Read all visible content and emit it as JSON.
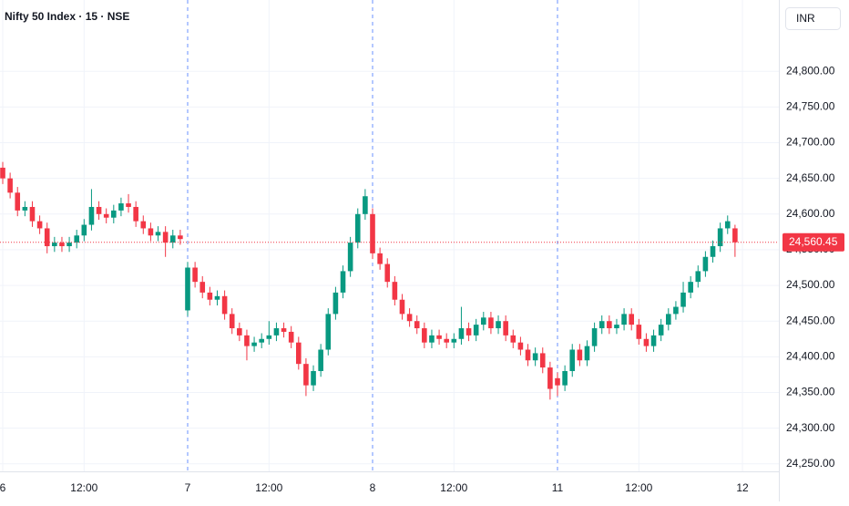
{
  "chart_data": {
    "type": "candlestick",
    "title": "Nifty 50 Index · 15 · NSE",
    "currency": "INR",
    "up_color": "#089981",
    "down_color": "#f23645",
    "ylim": [
      24242,
      24900
    ],
    "yticks": [
      {
        "value": 24250,
        "label": "24,250.00"
      },
      {
        "value": 24300,
        "label": "24,300.00"
      },
      {
        "value": 24350,
        "label": "24,350.00"
      },
      {
        "value": 24400,
        "label": "24,400.00"
      },
      {
        "value": 24450,
        "label": "24,450.00"
      },
      {
        "value": 24500,
        "label": "24,500.00"
      },
      {
        "value": 24550,
        "label": "24,550.00"
      },
      {
        "value": 24600,
        "label": "24,600.00"
      },
      {
        "value": 24650,
        "label": "24,650.00"
      },
      {
        "value": 24700,
        "label": "24,700.00"
      },
      {
        "value": 24750,
        "label": "24,750.00"
      },
      {
        "value": 24800,
        "label": "24,800.00"
      }
    ],
    "xticks": [
      {
        "value": 0,
        "label": "6"
      },
      {
        "value": 11,
        "label": "12:00"
      },
      {
        "value": 25,
        "label": "7"
      },
      {
        "value": 36,
        "label": "12:00"
      },
      {
        "value": 50,
        "label": "8"
      },
      {
        "value": 61,
        "label": "12:00"
      },
      {
        "value": 75,
        "label": "11"
      },
      {
        "value": 86,
        "label": "12:00"
      },
      {
        "value": 100,
        "label": "12"
      }
    ],
    "last_price": {
      "value": 24560.45,
      "label": "24,560.45"
    },
    "ohlc": [
      [
        24665,
        24673,
        24642,
        24650
      ],
      [
        24650,
        24658,
        24622,
        24630
      ],
      [
        24630,
        24638,
        24597,
        24605
      ],
      [
        24605,
        24618,
        24597,
        24610
      ],
      [
        24610,
        24618,
        24582,
        24590
      ],
      [
        24590,
        24598,
        24572,
        24580
      ],
      [
        24580,
        24588,
        24545,
        24555
      ],
      [
        24555,
        24568,
        24547,
        24560
      ],
      [
        24560,
        24568,
        24547,
        24555
      ],
      [
        24555,
        24568,
        24547,
        24560
      ],
      [
        24560,
        24578,
        24552,
        24570
      ],
      [
        24570,
        24593,
        24562,
        24585
      ],
      [
        24585,
        24635,
        24577,
        24610
      ],
      [
        24610,
        24618,
        24592,
        24600
      ],
      [
        24600,
        24608,
        24587,
        24595
      ],
      [
        24595,
        24613,
        24587,
        24605
      ],
      [
        24605,
        24623,
        24597,
        24615
      ],
      [
        24615,
        24628,
        24602,
        24610
      ],
      [
        24610,
        24618,
        24582,
        24590
      ],
      [
        24590,
        24598,
        24572,
        24580
      ],
      [
        24580,
        24588,
        24562,
        24570
      ],
      [
        24570,
        24583,
        24562,
        24575
      ],
      [
        24575,
        24583,
        24540,
        24560
      ],
      [
        24560,
        24578,
        24552,
        24570
      ],
      [
        24570,
        24578,
        24557,
        24565
      ],
      [
        24465,
        24533,
        24457,
        24525
      ],
      [
        24525,
        24533,
        24497,
        24505
      ],
      [
        24505,
        24513,
        24482,
        24490
      ],
      [
        24490,
        24498,
        24472,
        24480
      ],
      [
        24480,
        24493,
        24472,
        24485
      ],
      [
        24485,
        24493,
        24452,
        24460
      ],
      [
        24460,
        24468,
        24432,
        24440
      ],
      [
        24440,
        24448,
        24422,
        24430
      ],
      [
        24430,
        24438,
        24395,
        24415
      ],
      [
        24415,
        24428,
        24407,
        24420
      ],
      [
        24420,
        24433,
        24412,
        24425
      ],
      [
        24425,
        24450,
        24417,
        24430
      ],
      [
        24430,
        24448,
        24422,
        24440
      ],
      [
        24440,
        24448,
        24427,
        24435
      ],
      [
        24435,
        24443,
        24412,
        24420
      ],
      [
        24420,
        24428,
        24382,
        24390
      ],
      [
        24390,
        24398,
        24345,
        24360
      ],
      [
        24360,
        24388,
        24352,
        24380
      ],
      [
        24380,
        24418,
        24372,
        24410
      ],
      [
        24410,
        24468,
        24402,
        24460
      ],
      [
        24460,
        24498,
        24452,
        24490
      ],
      [
        24490,
        24528,
        24482,
        24520
      ],
      [
        24520,
        24568,
        24512,
        24560
      ],
      [
        24560,
        24608,
        24552,
        24600
      ],
      [
        24600,
        24635,
        24592,
        24625
      ],
      [
        24600,
        24608,
        24537,
        24545
      ],
      [
        24545,
        24553,
        24522,
        24530
      ],
      [
        24530,
        24538,
        24497,
        24505
      ],
      [
        24505,
        24513,
        24472,
        24480
      ],
      [
        24480,
        24488,
        24452,
        24460
      ],
      [
        24460,
        24468,
        24442,
        24450
      ],
      [
        24450,
        24458,
        24432,
        24440
      ],
      [
        24440,
        24448,
        24412,
        24420
      ],
      [
        24420,
        24438,
        24412,
        24430
      ],
      [
        24430,
        24438,
        24417,
        24425
      ],
      [
        24425,
        24433,
        24412,
        24420
      ],
      [
        24420,
        24433,
        24412,
        24425
      ],
      [
        24425,
        24470,
        24417,
        24440
      ],
      [
        24440,
        24448,
        24422,
        24430
      ],
      [
        24430,
        24453,
        24422,
        24445
      ],
      [
        24445,
        24463,
        24437,
        24455
      ],
      [
        24455,
        24463,
        24432,
        24440
      ],
      [
        24440,
        24458,
        24432,
        24450
      ],
      [
        24450,
        24458,
        24422,
        24430
      ],
      [
        24430,
        24438,
        24412,
        24420
      ],
      [
        24420,
        24428,
        24402,
        24410
      ],
      [
        24410,
        24418,
        24387,
        24395
      ],
      [
        24395,
        24413,
        24387,
        24405
      ],
      [
        24405,
        24413,
        24377,
        24385
      ],
      [
        24385,
        24393,
        24340,
        24355
      ],
      [
        24370,
        24378,
        24345,
        24360
      ],
      [
        24360,
        24388,
        24352,
        24380
      ],
      [
        24380,
        24418,
        24372,
        24410
      ],
      [
        24410,
        24418,
        24387,
        24395
      ],
      [
        24395,
        24423,
        24387,
        24415
      ],
      [
        24415,
        24448,
        24407,
        24440
      ],
      [
        24440,
        24458,
        24432,
        24450
      ],
      [
        24450,
        24458,
        24432,
        24440
      ],
      [
        24440,
        24453,
        24432,
        24445
      ],
      [
        24445,
        24468,
        24437,
        24460
      ],
      [
        24460,
        24468,
        24437,
        24445
      ],
      [
        24445,
        24453,
        24417,
        24425
      ],
      [
        24425,
        24433,
        24407,
        24415
      ],
      [
        24415,
        24438,
        24407,
        24430
      ],
      [
        24430,
        24453,
        24422,
        24445
      ],
      [
        24445,
        24468,
        24437,
        24460
      ],
      [
        24460,
        24478,
        24452,
        24470
      ],
      [
        24470,
        24505,
        24462,
        24490
      ],
      [
        24490,
        24513,
        24482,
        24505
      ],
      [
        24505,
        24528,
        24497,
        24520
      ],
      [
        24520,
        24548,
        24512,
        24540
      ],
      [
        24540,
        24563,
        24532,
        24555
      ],
      [
        24555,
        24588,
        24547,
        24580
      ],
      [
        24580,
        24598,
        24572,
        24590
      ],
      [
        24580,
        24585,
        24540,
        24560.45
      ]
    ]
  }
}
